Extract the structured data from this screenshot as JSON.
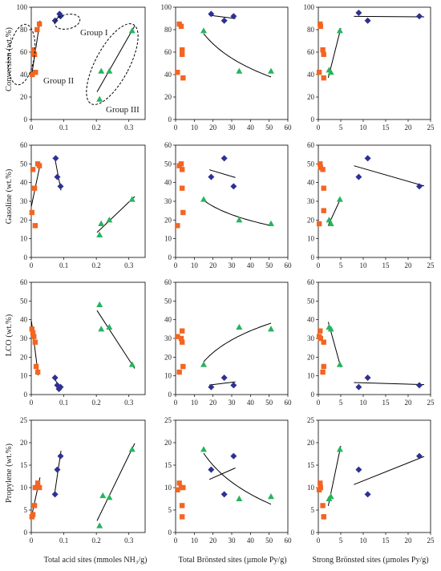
{
  "figure": {
    "row_labels": [
      "Conversion (wt.%)",
      "Gasoline (wt.%)",
      "LCO (wt.%)",
      "Propylene (wt.%)"
    ],
    "col_labels": [
      "Total acid sites (mmoles NH₃/g)",
      "Total Brönsted sites (µmole Py/g)",
      "Strong Brönsted sites (µmoles Py/g)"
    ],
    "group_labels": [
      "Group I",
      "Group II",
      "Group III"
    ]
  },
  "colors": {
    "group1": "#2e3192",
    "group2": "#f26522",
    "group3": "#27b35e",
    "curve": "#000000"
  },
  "chart_data": [
    {
      "type": "scatter",
      "row": 0,
      "col": 0,
      "xlim": [
        0,
        0.35
      ],
      "xticks": [
        "0",
        "0.1",
        "0.2",
        "0.3"
      ],
      "ylim": [
        0,
        100
      ],
      "yticks": [
        "0",
        "20",
        "40",
        "60",
        "80",
        "100"
      ],
      "ylabel": "Conversion (wt.%)",
      "series": [
        {
          "group": 1,
          "x": [
            0.073,
            0.087,
            0.09
          ],
          "y": [
            88,
            94,
            92
          ]
        },
        {
          "group": 2,
          "x": [
            0.003,
            0.007,
            0.01,
            0.013,
            0.018,
            0.025
          ],
          "y": [
            40,
            62,
            58,
            42,
            80,
            85
          ]
        },
        {
          "group": 3,
          "x": [
            0.21,
            0.215,
            0.24,
            0.31
          ],
          "y": [
            18,
            43,
            43,
            79
          ]
        }
      ]
    },
    {
      "type": "scatter",
      "row": 0,
      "col": 1,
      "xlim": [
        0,
        60
      ],
      "xticks": [
        "0",
        "10",
        "20",
        "30",
        "40",
        "50",
        "60"
      ],
      "ylim": [
        0,
        100
      ],
      "yticks": [
        "0",
        "20",
        "40",
        "60",
        "80",
        "100"
      ],
      "series": [
        {
          "group": 1,
          "x": [
            19,
            26,
            31
          ],
          "y": [
            94,
            88,
            92
          ]
        },
        {
          "group": 2,
          "x": [
            1,
            2,
            3,
            3.5,
            3.5,
            4
          ],
          "y": [
            42,
            85,
            83,
            62,
            58,
            37
          ]
        },
        {
          "group": 3,
          "x": [
            15,
            34,
            51
          ],
          "y": [
            79,
            43,
            43
          ]
        }
      ]
    },
    {
      "type": "scatter",
      "row": 0,
      "col": 2,
      "xlim": [
        0,
        25
      ],
      "xticks": [
        "0",
        "5",
        "10",
        "15",
        "20",
        "25"
      ],
      "ylim": [
        0,
        100
      ],
      "yticks": [
        "0",
        "20",
        "40",
        "60",
        "80",
        "100"
      ],
      "series": [
        {
          "group": 1,
          "x": [
            9,
            11,
            22.5
          ],
          "y": [
            95,
            88,
            92
          ]
        },
        {
          "group": 2,
          "x": [
            0.2,
            0.4,
            0.5,
            1,
            1.2,
            1.2
          ],
          "y": [
            42,
            85,
            83,
            62,
            58,
            37
          ]
        },
        {
          "group": 3,
          "x": [
            2.4,
            2.8,
            4.8
          ],
          "y": [
            44,
            42,
            79
          ]
        }
      ]
    },
    {
      "type": "scatter",
      "row": 1,
      "col": 0,
      "xlim": [
        0,
        0.35
      ],
      "xticks": [
        "0",
        "0.1",
        "0.2",
        "0.3"
      ],
      "ylim": [
        0,
        60
      ],
      "yticks": [
        "0",
        "10",
        "20",
        "30",
        "40",
        "50",
        "60"
      ],
      "ylabel": "Gasoline (wt.%)",
      "series": [
        {
          "group": 1,
          "x": [
            0.075,
            0.08,
            0.09
          ],
          "y": [
            53,
            43,
            38
          ]
        },
        {
          "group": 2,
          "x": [
            0.002,
            0.005,
            0.01,
            0.012,
            0.02,
            0.025
          ],
          "y": [
            24,
            47,
            37,
            17,
            50,
            49
          ]
        },
        {
          "group": 3,
          "x": [
            0.21,
            0.215,
            0.24,
            0.31
          ],
          "y": [
            12,
            18,
            20,
            31
          ]
        }
      ]
    },
    {
      "type": "scatter",
      "row": 1,
      "col": 1,
      "xlim": [
        0,
        60
      ],
      "xticks": [
        "0",
        "10",
        "20",
        "30",
        "40",
        "50",
        "60"
      ],
      "ylim": [
        0,
        60
      ],
      "yticks": [
        "0",
        "10",
        "20",
        "30",
        "40",
        "50",
        "60"
      ],
      "series": [
        {
          "group": 1,
          "x": [
            19,
            26,
            31
          ],
          "y": [
            43,
            53,
            38
          ]
        },
        {
          "group": 2,
          "x": [
            1,
            2,
            3,
            3.5,
            3.5,
            4
          ],
          "y": [
            17,
            49,
            50,
            47,
            37,
            24
          ]
        },
        {
          "group": 3,
          "x": [
            15,
            34,
            51
          ],
          "y": [
            31,
            20,
            18
          ]
        }
      ]
    },
    {
      "type": "scatter",
      "row": 1,
      "col": 2,
      "xlim": [
        0,
        25
      ],
      "xticks": [
        "0",
        "5",
        "10",
        "15",
        "20",
        "25"
      ],
      "ylim": [
        0,
        60
      ],
      "yticks": [
        "0",
        "10",
        "20",
        "30",
        "40",
        "50",
        "60"
      ],
      "series": [
        {
          "group": 1,
          "x": [
            9,
            11,
            22.5
          ],
          "y": [
            43,
            53,
            38
          ]
        },
        {
          "group": 2,
          "x": [
            0.2,
            0.4,
            0.5,
            1,
            1.2,
            1.2
          ],
          "y": [
            18,
            50,
            48,
            47,
            37,
            25
          ]
        },
        {
          "group": 3,
          "x": [
            2.4,
            2.8,
            4.8
          ],
          "y": [
            20,
            18,
            31
          ]
        }
      ]
    },
    {
      "type": "scatter",
      "row": 2,
      "col": 0,
      "xlim": [
        0,
        0.35
      ],
      "xticks": [
        "0",
        "0.1",
        "0.2",
        "0.3"
      ],
      "ylim": [
        0,
        60
      ],
      "yticks": [
        "0",
        "10",
        "20",
        "30",
        "40",
        "50",
        "60"
      ],
      "ylabel": "LCO (wt.%)",
      "series": [
        {
          "group": 1,
          "x": [
            0.073,
            0.08,
            0.085,
            0.09
          ],
          "y": [
            9,
            5,
            3,
            4
          ]
        },
        {
          "group": 2,
          "x": [
            0.002,
            0.005,
            0.008,
            0.012,
            0.015,
            0.02
          ],
          "y": [
            35,
            33,
            31,
            28,
            15,
            12
          ]
        },
        {
          "group": 3,
          "x": [
            0.21,
            0.215,
            0.24,
            0.31
          ],
          "y": [
            48,
            35,
            36,
            16
          ]
        }
      ]
    },
    {
      "type": "scatter",
      "row": 2,
      "col": 1,
      "xlim": [
        0,
        60
      ],
      "xticks": [
        "0",
        "10",
        "20",
        "30",
        "40",
        "50",
        "60"
      ],
      "ylim": [
        0,
        60
      ],
      "yticks": [
        "0",
        "10",
        "20",
        "30",
        "40",
        "50",
        "60"
      ],
      "series": [
        {
          "group": 1,
          "x": [
            19,
            26,
            31
          ],
          "y": [
            4,
            9,
            5
          ]
        },
        {
          "group": 2,
          "x": [
            1,
            2,
            3,
            3.5,
            3.5,
            4
          ],
          "y": [
            31,
            12,
            30,
            34,
            28,
            15
          ]
        },
        {
          "group": 3,
          "x": [
            15,
            34,
            51
          ],
          "y": [
            16,
            36,
            35
          ]
        }
      ]
    },
    {
      "type": "scatter",
      "row": 2,
      "col": 2,
      "xlim": [
        0,
        25
      ],
      "xticks": [
        "0",
        "5",
        "10",
        "15",
        "20",
        "25"
      ],
      "ylim": [
        0,
        60
      ],
      "yticks": [
        "0",
        "10",
        "20",
        "30",
        "40",
        "50",
        "60"
      ],
      "series": [
        {
          "group": 1,
          "x": [
            9,
            11,
            22.5
          ],
          "y": [
            4,
            9,
            5
          ]
        },
        {
          "group": 2,
          "x": [
            0.2,
            0.4,
            0.5,
            1,
            1.2,
            1.2
          ],
          "y": [
            31,
            34,
            30,
            12,
            15,
            28
          ]
        },
        {
          "group": 3,
          "x": [
            2.4,
            2.8,
            4.8
          ],
          "y": [
            36,
            35,
            16
          ]
        }
      ]
    },
    {
      "type": "scatter",
      "row": 3,
      "col": 0,
      "xlim": [
        0,
        0.35
      ],
      "xticks": [
        "0",
        "0.1",
        "0.2",
        "0.3"
      ],
      "ylim": [
        0,
        25
      ],
      "yticks": [
        "0",
        "5",
        "10",
        "15",
        "20",
        "25"
      ],
      "ylabel": "Propylene (wt.%)",
      "series": [
        {
          "group": 1,
          "x": [
            0.073,
            0.08,
            0.09
          ],
          "y": [
            8.5,
            14,
            17
          ]
        },
        {
          "group": 2,
          "x": [
            0.002,
            0.005,
            0.01,
            0.012,
            0.02,
            0.025
          ],
          "y": [
            3.5,
            4,
            6,
            10,
            11,
            10
          ]
        },
        {
          "group": 3,
          "x": [
            0.21,
            0.22,
            0.24,
            0.31
          ],
          "y": [
            1.5,
            8.2,
            7.8,
            18.5
          ]
        }
      ]
    },
    {
      "type": "scatter",
      "row": 3,
      "col": 1,
      "xlim": [
        0,
        60
      ],
      "xticks": [
        "0",
        "10",
        "20",
        "30",
        "40",
        "50",
        "60"
      ],
      "ylim": [
        0,
        25
      ],
      "yticks": [
        "0",
        "5",
        "10",
        "15",
        "20",
        "25"
      ],
      "series": [
        {
          "group": 1,
          "x": [
            19,
            26,
            31
          ],
          "y": [
            14,
            8.5,
            17
          ]
        },
        {
          "group": 2,
          "x": [
            1,
            2,
            3,
            3.5,
            3.5,
            4
          ],
          "y": [
            9.5,
            11,
            10,
            6,
            3.5,
            10
          ]
        },
        {
          "group": 3,
          "x": [
            15,
            34,
            51
          ],
          "y": [
            18.5,
            7.5,
            8
          ]
        }
      ]
    },
    {
      "type": "scatter",
      "row": 3,
      "col": 2,
      "xlim": [
        0,
        25
      ],
      "xticks": [
        "0",
        "5",
        "10",
        "15",
        "20",
        "25"
      ],
      "ylim": [
        0,
        25
      ],
      "yticks": [
        "0",
        "5",
        "10",
        "15",
        "20",
        "25"
      ],
      "series": [
        {
          "group": 1,
          "x": [
            9,
            11,
            22.5
          ],
          "y": [
            14,
            8.5,
            17
          ]
        },
        {
          "group": 2,
          "x": [
            0.2,
            0.4,
            0.5,
            1,
            1.2,
            1.2
          ],
          "y": [
            9.5,
            11,
            10,
            6,
            3.5,
            3.5
          ]
        },
        {
          "group": 3,
          "x": [
            2.4,
            2.8,
            4.8
          ],
          "y": [
            7.5,
            8,
            18.5
          ]
        }
      ]
    }
  ]
}
